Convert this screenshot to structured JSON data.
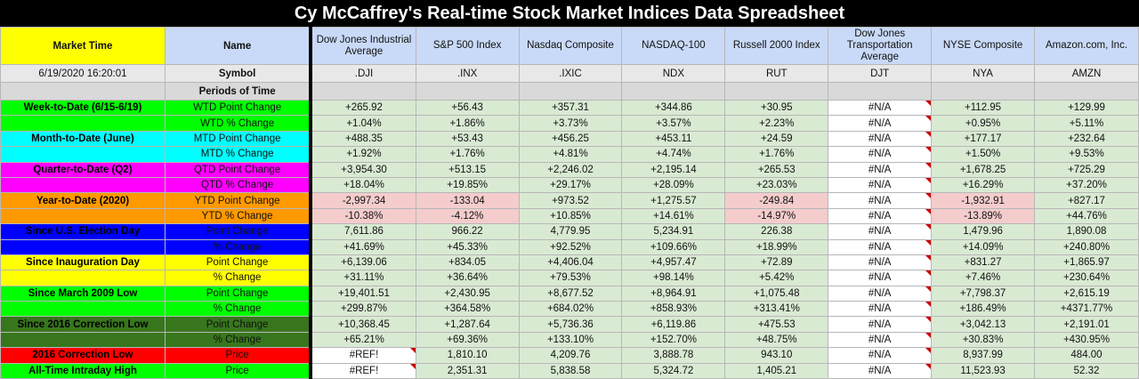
{
  "title": "Cy McCaffrey's Real-time Stock Market Indices Data Spreadsheet",
  "header": {
    "market_time_label": "Market Time",
    "name_label": "Name",
    "timestamp": "6/19/2020 16:20:01",
    "symbol_label": "Symbol",
    "periods_label": "Periods of Time"
  },
  "indices": [
    {
      "name": "Dow Jones Industrial Average",
      "symbol": ".DJI"
    },
    {
      "name": "S&P 500 Index",
      "symbol": ".INX"
    },
    {
      "name": "Nasdaq Composite",
      "symbol": ".IXIC"
    },
    {
      "name": "NASDAQ-100",
      "symbol": "NDX"
    },
    {
      "name": "Russell 2000 Index",
      "symbol": "RUT"
    },
    {
      "name": "Dow Jones Transportation Average",
      "symbol": "DJT"
    },
    {
      "name": "NYSE Composite",
      "symbol": "NYA"
    },
    {
      "name": "Amazon.com, Inc.",
      "symbol": "AMZN"
    }
  ],
  "groups": [
    {
      "label": "Week-to-Date (6/15-6/19)",
      "color": "#00ff00",
      "text_color": "#000000",
      "rows": [
        {
          "metric": "WTD Point Change",
          "values": [
            "+265.92",
            "+56.43",
            "+357.31",
            "+344.86",
            "+30.95",
            "#N/A",
            "+112.95",
            "+129.99"
          ],
          "neg": []
        },
        {
          "metric": "WTD % Change",
          "values": [
            "+1.04%",
            "+1.86%",
            "+3.73%",
            "+3.57%",
            "+2.23%",
            "#N/A",
            "+0.95%",
            "+5.11%"
          ],
          "neg": []
        }
      ]
    },
    {
      "label": "Month-to-Date (June)",
      "color": "#00ffff",
      "text_color": "#000000",
      "rows": [
        {
          "metric": "MTD Point Change",
          "values": [
            "+488.35",
            "+53.43",
            "+456.25",
            "+453.11",
            "+24.59",
            "#N/A",
            "+177.17",
            "+232.64"
          ],
          "neg": []
        },
        {
          "metric": "MTD % Change",
          "values": [
            "+1.92%",
            "+1.76%",
            "+4.81%",
            "+4.74%",
            "+1.76%",
            "#N/A",
            "+1.50%",
            "+9.53%"
          ],
          "neg": []
        }
      ]
    },
    {
      "label": "Quarter-to-Date (Q2)",
      "color": "#ff00ff",
      "text_color": "#000000",
      "rows": [
        {
          "metric": "QTD Point Change",
          "values": [
            "+3,954.30",
            "+513.15",
            "+2,246.02",
            "+2,195.14",
            "+265.53",
            "#N/A",
            "+1,678.25",
            "+725.29"
          ],
          "neg": []
        },
        {
          "metric": "QTD % Change",
          "values": [
            "+18.04%",
            "+19.85%",
            "+29.17%",
            "+28.09%",
            "+23.03%",
            "#N/A",
            "+16.29%",
            "+37.20%"
          ],
          "neg": []
        }
      ]
    },
    {
      "label": "Year-to-Date (2020)",
      "color": "#ff9900",
      "text_color": "#000000",
      "rows": [
        {
          "metric": "YTD Point Change",
          "values": [
            "-2,997.34",
            "-133.04",
            "+973.52",
            "+1,275.57",
            "-249.84",
            "#N/A",
            "-1,932.91",
            "+827.17"
          ],
          "neg": [
            0,
            1,
            4,
            6
          ]
        },
        {
          "metric": "YTD % Change",
          "values": [
            "-10.38%",
            "-4.12%",
            "+10.85%",
            "+14.61%",
            "-14.97%",
            "#N/A",
            "-13.89%",
            "+44.76%"
          ],
          "neg": [
            0,
            1,
            4,
            6
          ]
        }
      ]
    },
    {
      "label": "Since U.S. Election Day",
      "color": "#0000ff",
      "text_color": "#000000",
      "rows": [
        {
          "metric": "Point Change",
          "values": [
            "7,611.86",
            "966.22",
            "4,779.95",
            "5,234.91",
            "226.38",
            "#N/A",
            "1,479.96",
            "1,890.08"
          ],
          "neg": []
        },
        {
          "metric": "% Change",
          "values": [
            "+41.69%",
            "+45.33%",
            "+92.52%",
            "+109.66%",
            "+18.99%",
            "#N/A",
            "+14.09%",
            "+240.80%"
          ],
          "neg": []
        }
      ]
    },
    {
      "label": "Since Inauguration Day",
      "color": "#ffff00",
      "text_color": "#000000",
      "rows": [
        {
          "metric": "Point Change",
          "values": [
            "+6,139.06",
            "+834.05",
            "+4,406.04",
            "+4,957.47",
            "+72.89",
            "#N/A",
            "+831.27",
            "+1,865.97"
          ],
          "neg": []
        },
        {
          "metric": "% Change",
          "values": [
            "+31.11%",
            "+36.64%",
            "+79.53%",
            "+98.14%",
            "+5.42%",
            "#N/A",
            "+7.46%",
            "+230.64%"
          ],
          "neg": []
        }
      ]
    },
    {
      "label": "Since March 2009 Low",
      "color": "#00ff00",
      "text_color": "#000000",
      "rows": [
        {
          "metric": "Point Change",
          "values": [
            "+19,401.51",
            "+2,430.95",
            "+8,677.52",
            "+8,964.91",
            "+1,075.48",
            "#N/A",
            "+7,798.37",
            "+2,615.19"
          ],
          "neg": []
        },
        {
          "metric": "% Change",
          "values": [
            "+299.87%",
            "+364.58%",
            "+684.02%",
            "+858.93%",
            "+313.41%",
            "#N/A",
            "+186.49%",
            "+4371.77%"
          ],
          "neg": []
        }
      ]
    },
    {
      "label": "Since 2016 Correction Low",
      "color": "#38761d",
      "text_color": "#000000",
      "rows": [
        {
          "metric": "Point Change",
          "values": [
            "+10,368.45",
            "+1,287.64",
            "+5,736.36",
            "+6,119.86",
            "+475.53",
            "#N/A",
            "+3,042.13",
            "+2,191.01"
          ],
          "neg": []
        },
        {
          "metric": "% Change",
          "values": [
            "+65.21%",
            "+69.36%",
            "+133.10%",
            "+152.70%",
            "+48.75%",
            "#N/A",
            "+30.83%",
            "+430.95%"
          ],
          "neg": []
        }
      ]
    },
    {
      "label": "2016 Correction Low",
      "color": "#ff0000",
      "text_color": "#000000",
      "rows": [
        {
          "metric": "Price",
          "values": [
            "#REF!",
            "1,810.10",
            "4,209.76",
            "3,888.78",
            "943.10",
            "#N/A",
            "8,937.99",
            "484.00"
          ],
          "neg": []
        }
      ]
    },
    {
      "label": "All-Time Intraday High",
      "color": "#00ff00",
      "text_color": "#000000",
      "rows": [
        {
          "metric": "Price",
          "values": [
            "#REF!",
            "2,351.31",
            "5,838.58",
            "5,324.72",
            "1,405.21",
            "#N/A",
            "11,523.93",
            "52.32"
          ],
          "neg": []
        }
      ]
    }
  ]
}
